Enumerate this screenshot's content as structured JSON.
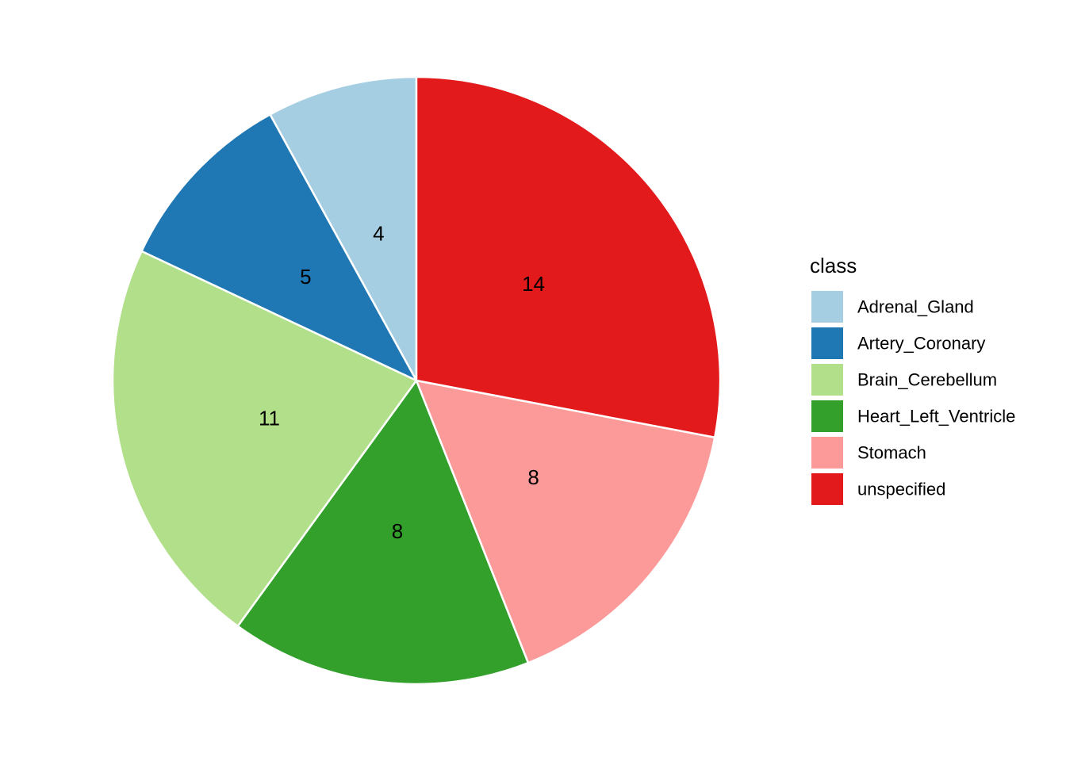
{
  "chart_data": {
    "type": "pie",
    "title": "",
    "legend_title": "class",
    "legend_position": "right",
    "start": "top",
    "direction": "counterclockwise",
    "slices": [
      {
        "label": "Adrenal_Gland",
        "value": 4,
        "color": "#A6CEE3"
      },
      {
        "label": "Artery_Coronary",
        "value": 5,
        "color": "#1F78B4"
      },
      {
        "label": "Brain_Cerebellum",
        "value": 11,
        "color": "#B2DF8A"
      },
      {
        "label": "Heart_Left_Ventricle",
        "value": 8,
        "color": "#33A02C"
      },
      {
        "label": "Stomach",
        "value": 8,
        "color": "#FB9A99"
      },
      {
        "label": "unspecified",
        "value": 14,
        "color": "#E31A1C"
      }
    ]
  }
}
